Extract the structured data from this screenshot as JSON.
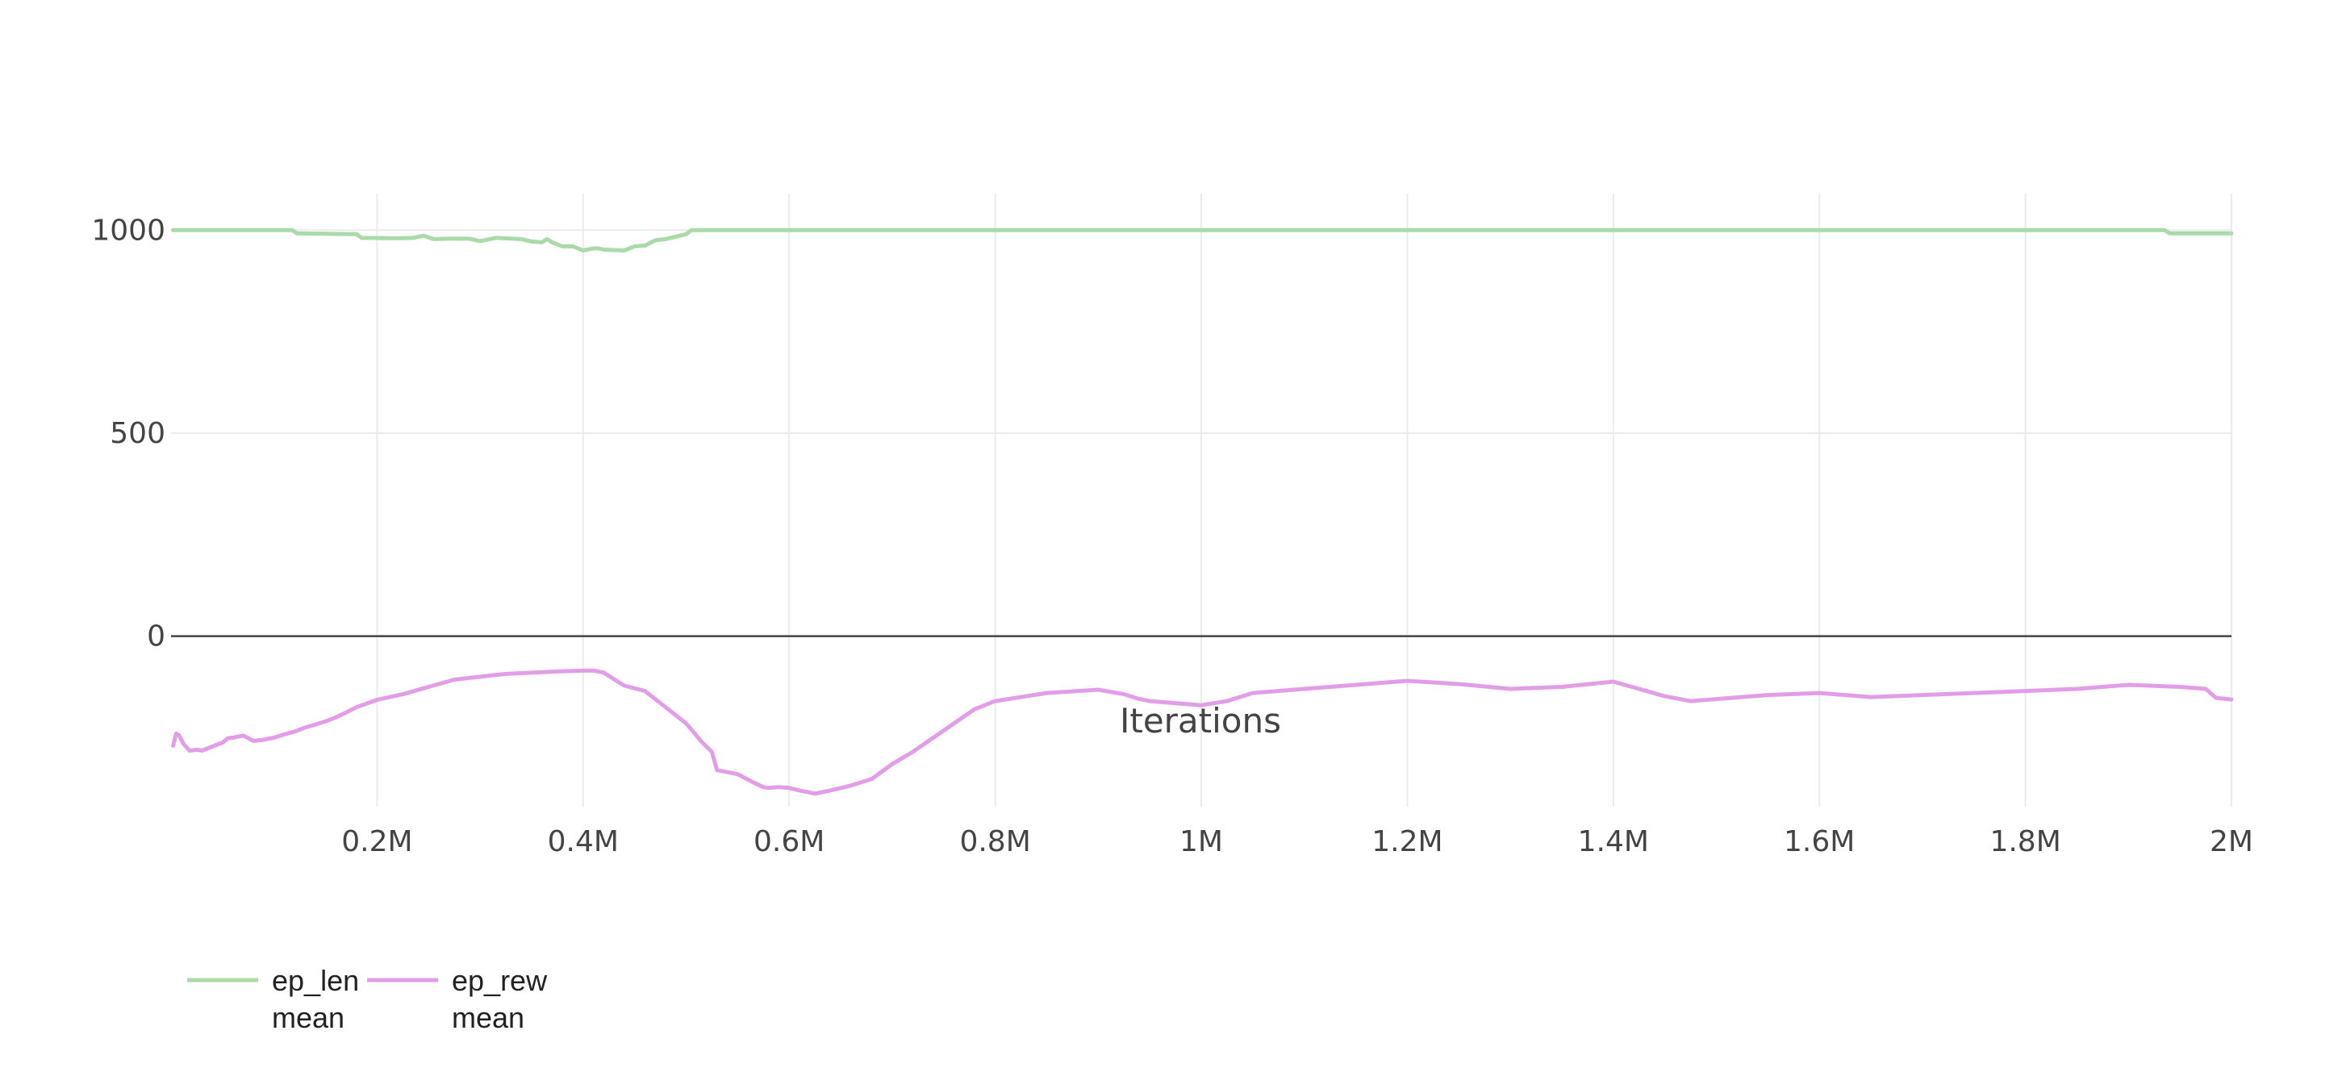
{
  "chart_data": {
    "type": "line",
    "xlabel": "Iterations",
    "ylabel": "",
    "xlim": [
      0,
      2000000
    ],
    "ylim": [
      -420,
      1090
    ],
    "x_ticks": [
      200000,
      400000,
      600000,
      800000,
      1000000,
      1200000,
      1400000,
      1600000,
      1800000,
      2000000
    ],
    "x_tick_labels": [
      "0.2M",
      "0.4M",
      "0.6M",
      "0.8M",
      "1M",
      "1.2M",
      "1.4M",
      "1.6M",
      "1.8M",
      "2M"
    ],
    "y_ticks": [
      0,
      500,
      1000
    ],
    "y_tick_labels": [
      "0",
      "500",
      "1000"
    ],
    "grid": true,
    "legend_position": "bottom-left",
    "series": [
      {
        "name": "ep_len_mean",
        "legend_lines": [
          "ep_len",
          "mean"
        ],
        "color": "#a8dba8",
        "x": [
          2000,
          50000,
          118000,
          122000,
          180000,
          185000,
          220000,
          235000,
          245000,
          255000,
          270000,
          290000,
          300000,
          315000,
          340000,
          350000,
          360000,
          365000,
          370000,
          380000,
          390000,
          400000,
          410000,
          415000,
          420000,
          430000,
          440000,
          450000,
          460000,
          470000,
          480000,
          500000,
          505000,
          1000000,
          1500000,
          1935000,
          1940000,
          2000000
        ],
        "values": [
          1000,
          1000,
          1000,
          992,
          990,
          981,
          980,
          981,
          986,
          978,
          979,
          979,
          973,
          981,
          978,
          972,
          970,
          978,
          970,
          960,
          960,
          950,
          955,
          955,
          952,
          951,
          950,
          960,
          962,
          975,
          978,
          990,
          1000,
          1000,
          1000,
          1000,
          992,
          992
        ]
      },
      {
        "name": "ep_rew_mean",
        "legend_lines": [
          "ep_rew",
          "mean"
        ],
        "color": "#e39de8",
        "x": [
          2000,
          5000,
          8000,
          12000,
          18000,
          25000,
          30000,
          40000,
          50000,
          55000,
          60000,
          70000,
          80000,
          90000,
          100000,
          110000,
          120000,
          130000,
          140000,
          150000,
          160000,
          170000,
          180000,
          200000,
          225000,
          250000,
          275000,
          300000,
          325000,
          350000,
          375000,
          400000,
          410000,
          415000,
          420000,
          440000,
          460000,
          480000,
          500000,
          515000,
          525000,
          530000,
          550000,
          565000,
          575000,
          580000,
          590000,
          600000,
          610000,
          620000,
          625000,
          640000,
          660000,
          680000,
          700000,
          720000,
          740000,
          760000,
          780000,
          800000,
          850000,
          900000,
          925000,
          940000,
          950000,
          1000000,
          1025000,
          1050000,
          1100000,
          1150000,
          1200000,
          1250000,
          1300000,
          1350000,
          1400000,
          1450000,
          1475000,
          1500000,
          1550000,
          1600000,
          1650000,
          1700000,
          1750000,
          1800000,
          1850000,
          1900000,
          1950000,
          1975000,
          1985000,
          2000000
        ],
        "values": [
          -270,
          -240,
          -245,
          -265,
          -282,
          -280,
          -282,
          -272,
          -262,
          -252,
          -250,
          -245,
          -258,
          -255,
          -250,
          -242,
          -235,
          -225,
          -218,
          -210,
          -200,
          -188,
          -175,
          -157,
          -143,
          -125,
          -107,
          -100,
          -93,
          -90,
          -87,
          -85,
          -85,
          -87,
          -90,
          -122,
          -135,
          -175,
          -215,
          -260,
          -285,
          -330,
          -340,
          -360,
          -372,
          -374,
          -372,
          -374,
          -380,
          -385,
          -388,
          -380,
          -368,
          -352,
          -315,
          -285,
          -250,
          -215,
          -180,
          -160,
          -140,
          -132,
          -143,
          -155,
          -160,
          -170,
          -160,
          -140,
          -130,
          -120,
          -110,
          -118,
          -130,
          -125,
          -112,
          -148,
          -160,
          -155,
          -145,
          -140,
          -150,
          -145,
          -140,
          -135,
          -130,
          -120,
          -125,
          -130,
          -152,
          -156
        ]
      }
    ]
  }
}
